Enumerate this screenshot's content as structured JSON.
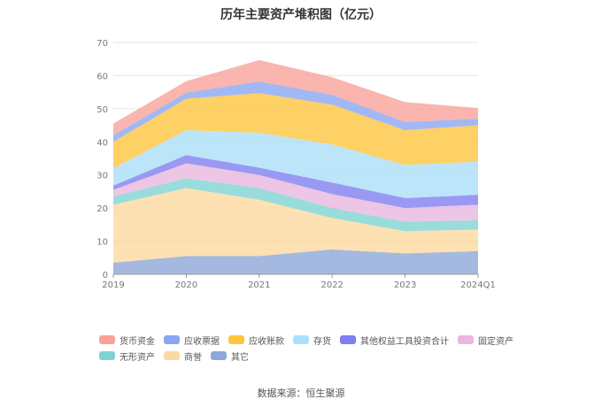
{
  "chart_data": {
    "type": "area",
    "stacked": true,
    "title": "历年主要资产堆积图（亿元）",
    "x": [
      "2019",
      "2020",
      "2021",
      "2022",
      "2023",
      "2024Q1"
    ],
    "ylim": [
      0,
      70
    ],
    "yticks": [
      0,
      10,
      20,
      30,
      40,
      50,
      60,
      70
    ],
    "grid": true,
    "legend_position": "bottom",
    "series": [
      {
        "name": "其它",
        "color": "#8ea8d8",
        "values": [
          3.5,
          5.5,
          5.5,
          7.5,
          6.3,
          7.0
        ]
      },
      {
        "name": "商誉",
        "color": "#fcd9a0",
        "values": [
          17.5,
          20.5,
          17.0,
          9.5,
          6.7,
          6.5
        ]
      },
      {
        "name": "无形资产",
        "color": "#7fd3d3",
        "values": [
          2.5,
          3.0,
          3.5,
          3.0,
          2.9,
          2.8
        ]
      },
      {
        "name": "固定资产",
        "color": "#e9b7df",
        "values": [
          2.0,
          4.5,
          4.0,
          4.2,
          4.1,
          4.7
        ]
      },
      {
        "name": "其他权益工具投资合计",
        "color": "#7f7ff0",
        "values": [
          1.3,
          2.5,
          2.2,
          3.5,
          3.0,
          3.0
        ]
      },
      {
        "name": "存货",
        "color": "#abdff9",
        "values": [
          5.2,
          7.5,
          10.5,
          11.5,
          10.0,
          10.0
        ]
      },
      {
        "name": "应收账款",
        "color": "#fdc63f",
        "values": [
          8.0,
          9.5,
          12.0,
          12.0,
          10.5,
          11.0
        ]
      },
      {
        "name": "应收票据",
        "color": "#89a6f2",
        "values": [
          2.0,
          1.8,
          3.5,
          3.0,
          2.5,
          2.0
        ]
      },
      {
        "name": "货币资金",
        "color": "#f8a29a",
        "values": [
          3.5,
          3.5,
          6.5,
          5.3,
          6.0,
          3.2
        ]
      }
    ],
    "legend_order": [
      "货币资金",
      "应收票据",
      "应收账款",
      "存货",
      "其他权益工具投资合计",
      "固定资产",
      "无形资产",
      "商誉",
      "其它"
    ]
  },
  "source_note": "数据来源：恒生聚源"
}
